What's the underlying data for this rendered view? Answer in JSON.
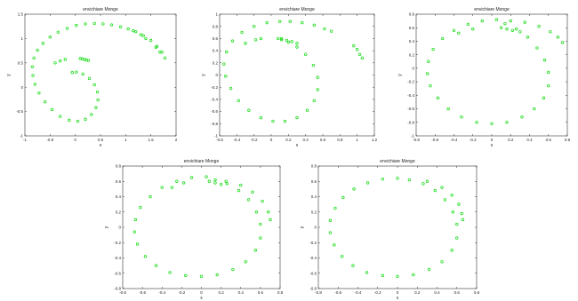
{
  "chart_data": [
    {
      "type": "scatter",
      "title": "envichiare Monge",
      "xlabel": "x",
      "ylabel": "y",
      "xlim": [
        -1,
        2
      ],
      "ylim": [
        -1,
        1.5
      ],
      "xticks": [
        "-1",
        "-0.5",
        "0",
        "0.5",
        "1",
        "1.5",
        "2"
      ],
      "xtick_values": [
        -1,
        -0.5,
        0,
        0.5,
        1,
        1.5,
        2
      ],
      "yticks": [
        "-1",
        "-0.5",
        "0",
        "0.5",
        "1",
        "1.5"
      ],
      "ytick_values": [
        -1,
        -0.5,
        0,
        0.5,
        1,
        1.5
      ],
      "marker_color": "#22dd22",
      "series": [
        {
          "values_description_free": true,
          "x": [
            0.38,
            0.2,
            0.02,
            -0.16,
            -0.34,
            -0.5,
            -0.64,
            -0.75,
            -0.82,
            -0.85,
            -0.84,
            -0.8,
            -0.72,
            -0.6,
            -0.46,
            -0.3,
            -0.12,
            0.05,
            0.2,
            0.32,
            0.41,
            0.45,
            0.44,
            0.38,
            0.28,
            0.15,
            0.02,
            -0.06,
            0.55,
            0.72,
            0.9,
            1.05,
            1.2,
            1.35,
            1.5,
            1.62,
            1.72,
            1.78,
            -0.4,
            -0.3,
            -0.2,
            0.1,
            0.14,
            0.18,
            0.22,
            0.26,
            1.15,
            1.3,
            1.4,
            1.6,
            1.68
          ],
          "y": [
            1.31,
            1.3,
            1.27,
            1.21,
            1.13,
            1.03,
            0.9,
            0.76,
            0.6,
            0.42,
            0.24,
            0.06,
            -0.12,
            -0.3,
            -0.46,
            -0.6,
            -0.68,
            -0.7,
            -0.66,
            -0.56,
            -0.42,
            -0.26,
            -0.1,
            0.05,
            0.18,
            0.27,
            0.31,
            0.3,
            1.3,
            1.28,
            1.24,
            1.2,
            1.14,
            1.06,
            0.96,
            0.84,
            0.72,
            0.6,
            0.5,
            0.54,
            0.57,
            0.59,
            0.58,
            0.57,
            0.56,
            0.55,
            1.16,
            1.08,
            1.0,
            0.82,
            0.72
          ]
        }
      ]
    },
    {
      "type": "scatter",
      "title": "envichiare Monge",
      "xlabel": "x",
      "ylabel": "y",
      "xlim": [
        -0.6,
        1.2
      ],
      "ylim": [
        -1.0,
        1.0
      ],
      "xticks": [
        "-0.6",
        "-0.4",
        "-0.2",
        "0",
        "0.2",
        "0.4",
        "0.6",
        "0.8",
        "1",
        "1.2"
      ],
      "xtick_values": [
        -0.6,
        -0.4,
        -0.2,
        0,
        0.2,
        0.4,
        0.6,
        0.8,
        1.0,
        1.2
      ],
      "yticks": [
        "-1",
        "-0.8",
        "-0.6",
        "-0.4",
        "-0.2",
        "0",
        "0.2",
        "0.4",
        "0.6",
        "0.8",
        "1"
      ],
      "ytick_values": [
        -1,
        -0.8,
        -0.6,
        -0.4,
        -0.2,
        0,
        0.2,
        0.4,
        0.6,
        0.8,
        1.0
      ],
      "marker_color": "#22dd22",
      "series": [
        {
          "x": [
            0.1,
            -0.05,
            -0.2,
            -0.34,
            -0.45,
            -0.52,
            -0.55,
            -0.53,
            -0.47,
            -0.38,
            -0.26,
            -0.12,
            0.02,
            0.16,
            0.3,
            0.42,
            0.5,
            0.54,
            0.54,
            0.49,
            0.4,
            0.3,
            0.2,
            0.12,
            0.08,
            0.22,
            0.36,
            0.5,
            0.62,
            0.7,
            0.96,
            1.0,
            1.03,
            1.06,
            -0.3,
            -0.18,
            -0.12,
            0.12,
            0.18,
            0.24,
            0.3
          ],
          "y": [
            0.88,
            0.86,
            0.8,
            0.7,
            0.56,
            0.38,
            0.18,
            -0.02,
            -0.22,
            -0.42,
            -0.58,
            -0.7,
            -0.76,
            -0.76,
            -0.7,
            -0.58,
            -0.42,
            -0.24,
            -0.04,
            0.16,
            0.34,
            0.46,
            0.54,
            0.58,
            0.6,
            0.88,
            0.86,
            0.82,
            0.76,
            0.72,
            0.48,
            0.42,
            0.34,
            0.28,
            0.52,
            0.58,
            0.6,
            0.6,
            0.57,
            0.55,
            0.52
          ]
        }
      ]
    },
    {
      "type": "scatter",
      "title": "envichiare Monge",
      "xlabel": "x",
      "ylabel": "y",
      "xlim": [
        -0.8,
        0.8
      ],
      "ylim": [
        -1.0,
        0.8
      ],
      "xticks": [
        "-0.8",
        "-0.6",
        "-0.4",
        "-0.2",
        "0",
        "0.2",
        "0.4",
        "0.6",
        "0.8"
      ],
      "xtick_values": [
        -0.8,
        -0.6,
        -0.4,
        -0.2,
        0,
        0.2,
        0.4,
        0.6,
        0.8
      ],
      "yticks": [
        "-1",
        "-0.8",
        "-0.6",
        "-0.4",
        "-0.2",
        "0",
        "0.2",
        "0.4",
        "0.6",
        "0.8"
      ],
      "ytick_values": [
        -1,
        -0.8,
        -0.6,
        -0.4,
        -0.2,
        0,
        0.2,
        0.4,
        0.6,
        0.8
      ],
      "marker_color": "#22dd22",
      "series": [
        {
          "x": [
            0.05,
            -0.1,
            -0.25,
            -0.4,
            -0.52,
            -0.62,
            -0.67,
            -0.68,
            -0.65,
            -0.57,
            -0.46,
            -0.32,
            -0.16,
            0.0,
            0.16,
            0.32,
            0.45,
            0.55,
            0.6,
            0.6,
            0.56,
            0.48,
            0.38,
            0.26,
            0.14,
            0.2,
            0.35,
            0.5,
            0.62,
            0.7,
            0.75,
            -0.35,
            -0.2,
            0.1,
            0.16,
            0.22,
            0.3
          ],
          "y": [
            0.72,
            0.7,
            0.65,
            0.56,
            0.44,
            0.28,
            0.1,
            -0.08,
            -0.26,
            -0.44,
            -0.6,
            -0.72,
            -0.8,
            -0.82,
            -0.8,
            -0.72,
            -0.6,
            -0.44,
            -0.26,
            -0.06,
            0.12,
            0.3,
            0.46,
            0.58,
            0.66,
            0.7,
            0.68,
            0.62,
            0.54,
            0.46,
            0.38,
            0.52,
            0.58,
            0.6,
            0.58,
            0.56,
            0.54
          ]
        }
      ]
    },
    {
      "type": "scatter",
      "title": "envichiare Monge",
      "xlabel": "x",
      "ylabel": "y",
      "xlim": [
        -0.8,
        0.8
      ],
      "ylim": [
        -0.8,
        0.8
      ],
      "xticks": [
        "-0.8",
        "-0.6",
        "-0.4",
        "-0.2",
        "0",
        "0.2",
        "0.4",
        "0.6",
        "0.8"
      ],
      "xtick_values": [
        -0.8,
        -0.6,
        -0.4,
        -0.2,
        0,
        0.2,
        0.4,
        0.6,
        0.8
      ],
      "yticks": [
        "-0.8",
        "-0.6",
        "-0.4",
        "-0.2",
        "0",
        "0.2",
        "0.4",
        "0.6",
        "0.8"
      ],
      "ytick_values": [
        -0.8,
        -0.6,
        -0.4,
        -0.2,
        0,
        0.2,
        0.4,
        0.6,
        0.8
      ],
      "marker_color": "#22dd22",
      "series": [
        {
          "x": [
            0.05,
            -0.1,
            -0.25,
            -0.4,
            -0.52,
            -0.62,
            -0.67,
            -0.68,
            -0.65,
            -0.57,
            -0.46,
            -0.32,
            -0.16,
            0.0,
            0.16,
            0.32,
            0.45,
            0.55,
            0.6,
            0.6,
            0.56,
            0.48,
            0.38,
            0.26,
            0.14,
            0.25,
            0.4,
            0.52,
            0.62,
            0.68,
            0.7,
            -0.3,
            -0.18,
            0.08,
            0.14,
            0.2
          ],
          "y": [
            0.66,
            0.65,
            0.6,
            0.52,
            0.4,
            0.26,
            0.1,
            -0.06,
            -0.22,
            -0.38,
            -0.5,
            -0.59,
            -0.63,
            -0.64,
            -0.62,
            -0.55,
            -0.45,
            -0.3,
            -0.14,
            0.04,
            0.2,
            0.36,
            0.48,
            0.57,
            0.62,
            0.6,
            0.55,
            0.46,
            0.34,
            0.2,
            0.1,
            0.52,
            0.58,
            0.6,
            0.58,
            0.56
          ]
        }
      ]
    },
    {
      "type": "scatter",
      "title": "envichiare Monge",
      "xlabel": "x",
      "ylabel": "y",
      "xlim": [
        -0.8,
        0.8
      ],
      "ylim": [
        -0.8,
        0.8
      ],
      "xticks": [
        "-0.8",
        "-0.6",
        "-0.4",
        "-0.2",
        "0",
        "0.2",
        "0.4",
        "0.6",
        "0.8"
      ],
      "xtick_values": [
        -0.8,
        -0.6,
        -0.4,
        -0.2,
        0,
        0.2,
        0.4,
        0.6,
        0.8
      ],
      "yticks": [
        "-0.8",
        "-0.6",
        "-0.4",
        "-0.2",
        "0",
        "0.2",
        "0.4",
        "0.6",
        "0.8"
      ],
      "ytick_values": [
        -0.8,
        -0.6,
        -0.4,
        -0.2,
        0,
        0.2,
        0.4,
        0.6,
        0.8
      ],
      "marker_color": "#22dd22",
      "series": [
        {
          "x": [
            0.0,
            -0.15,
            -0.3,
            -0.44,
            -0.55,
            -0.63,
            -0.68,
            -0.68,
            -0.64,
            -0.56,
            -0.45,
            -0.31,
            -0.15,
            0.0,
            0.16,
            0.32,
            0.45,
            0.55,
            0.6,
            0.6,
            0.56,
            0.48,
            0.38,
            0.26,
            0.12,
            0.3,
            0.45,
            0.55,
            0.62,
            0.65,
            0.66
          ],
          "y": [
            0.64,
            0.63,
            0.58,
            0.5,
            0.39,
            0.25,
            0.09,
            -0.07,
            -0.23,
            -0.38,
            -0.5,
            -0.59,
            -0.63,
            -0.64,
            -0.62,
            -0.55,
            -0.45,
            -0.3,
            -0.14,
            0.04,
            0.2,
            0.36,
            0.48,
            0.57,
            0.62,
            0.6,
            0.52,
            0.42,
            0.3,
            0.18,
            0.1
          ]
        }
      ]
    }
  ]
}
